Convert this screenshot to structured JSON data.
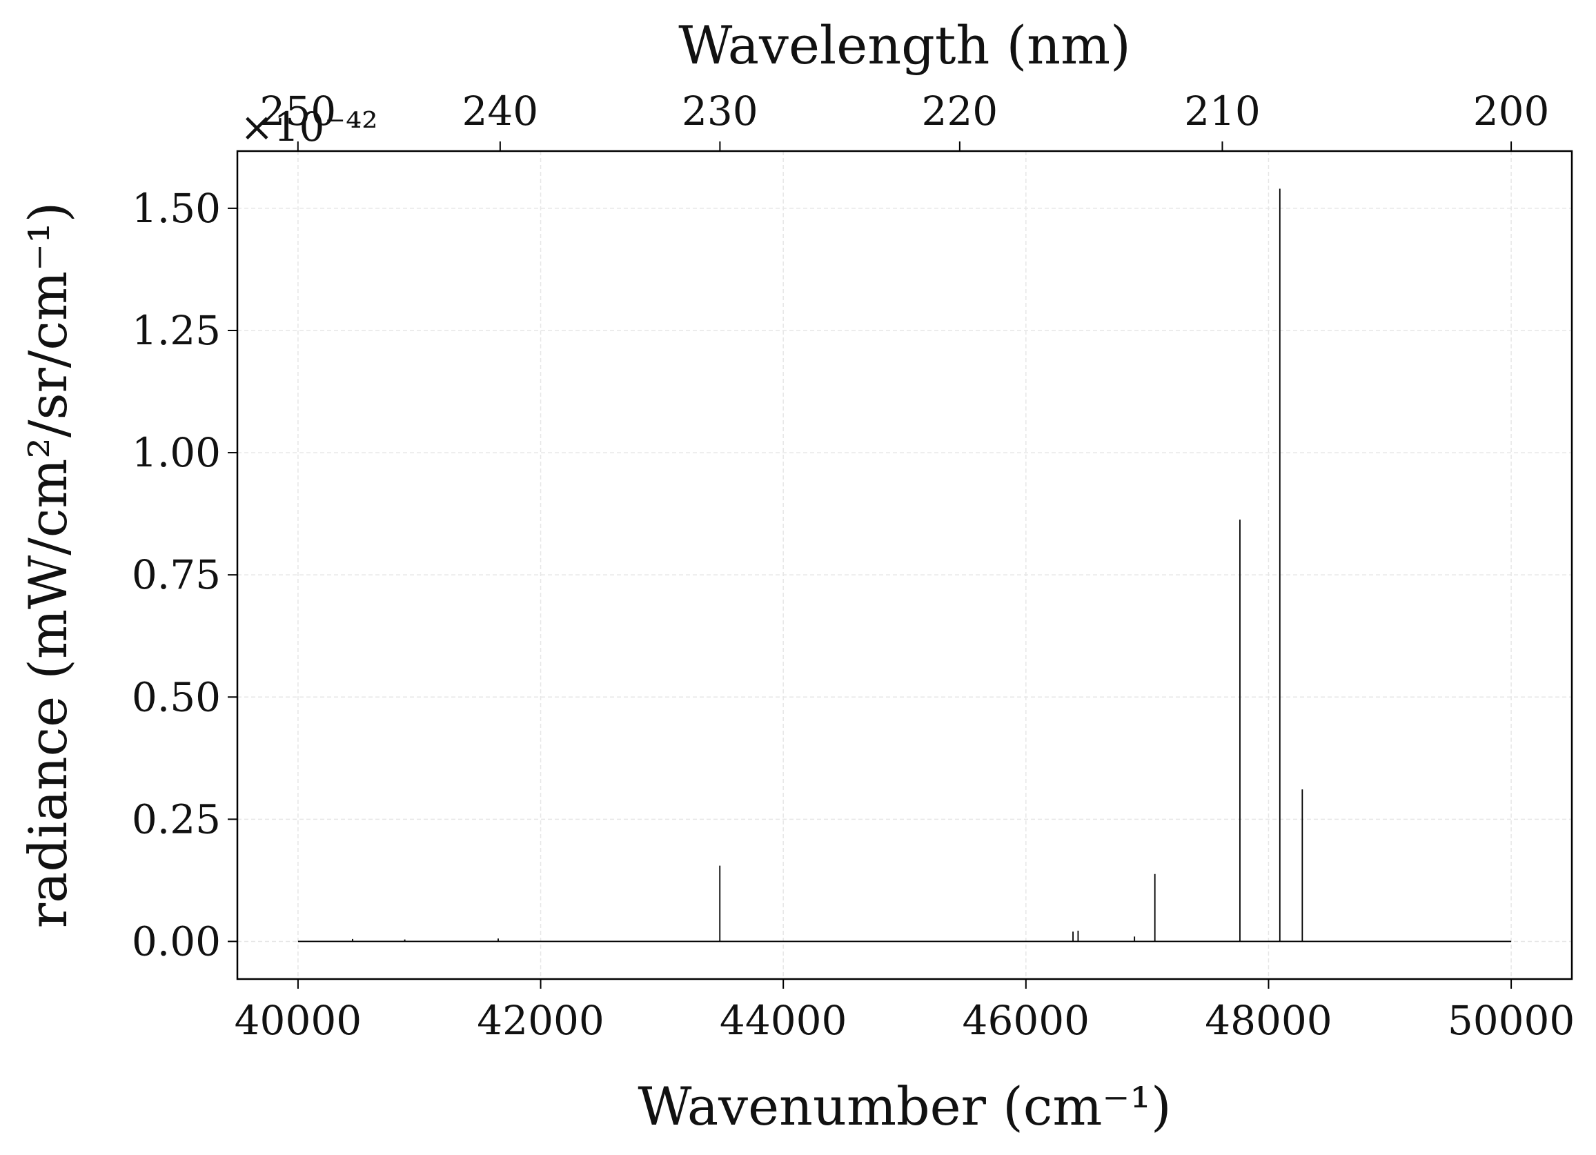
{
  "chart_data": {
    "type": "line",
    "xlabel": "Wavenumber (cm⁻¹)",
    "ylabel": "radiance (mW/cm²/sr/cm⁻¹)",
    "x2label": "Wavelength (nm)",
    "y_offset_label": "×10⁻⁴²",
    "color": "#000000",
    "grid": true,
    "x": [
      40000,
      40450,
      40450,
      40450,
      40880,
      40880,
      40880,
      41650,
      41650,
      41650,
      43477,
      43477,
      43477,
      46388,
      46388,
      46388,
      46430,
      46430,
      46430,
      46895,
      46895,
      46895,
      47063,
      47063,
      47063,
      47764,
      47764,
      47764,
      48093,
      48093,
      48093,
      48278,
      48278,
      48278,
      50000
    ],
    "values": [
      0,
      0,
      0.005,
      0,
      0,
      0.004,
      0,
      0,
      0.006,
      0,
      0,
      0.155,
      0,
      0,
      0.02,
      0,
      0,
      0.022,
      0,
      0,
      0.01,
      0,
      0,
      0.138,
      0,
      0,
      0.863,
      0,
      0,
      1.54,
      0,
      0,
      0.311,
      0,
      0
    ],
    "xlim": [
      39500,
      50500
    ],
    "xticks": [
      40000,
      42000,
      44000,
      46000,
      48000,
      50000
    ],
    "ylim": [
      -0.077,
      1.617
    ],
    "yticks": [
      {
        "value": 0,
        "label": "0.00"
      },
      {
        "value": 0.25,
        "label": "0.25"
      },
      {
        "value": 0.5,
        "label": "0.50"
      },
      {
        "value": 0.75,
        "label": "0.75"
      },
      {
        "value": 1,
        "label": "1.00"
      },
      {
        "value": 1.25,
        "label": "1.25"
      },
      {
        "value": 1.5,
        "label": "1.50"
      }
    ],
    "x2scale": "reciprocal",
    "x2lim": [
      253.16,
      198.02
    ],
    "x2ticks": [
      250,
      240,
      230,
      220,
      210,
      200
    ]
  }
}
